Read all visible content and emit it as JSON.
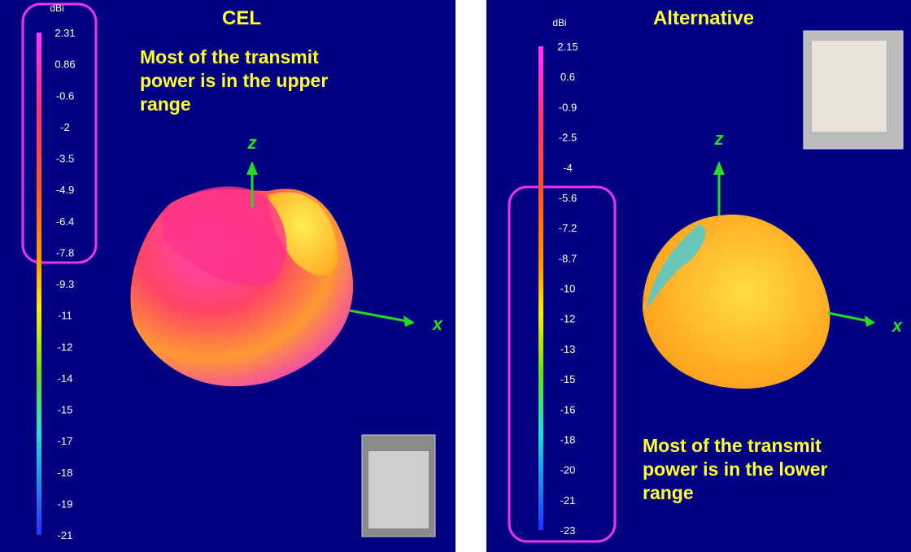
{
  "panels": [
    {
      "title": "CEL",
      "unit": "dBi",
      "scale_labels": [
        "2.31",
        "0.86",
        "-0.6",
        "-2",
        "-3.5",
        "-4.9",
        "-6.4",
        "-7.8",
        "-9.3",
        "-11",
        "-12",
        "-14",
        "-15",
        "-17",
        "-18",
        "-19",
        "-21"
      ],
      "annotation": [
        "Most of the transmit",
        "power is in the upper",
        "range"
      ],
      "axis_labels": {
        "z": "z",
        "x": "x"
      }
    },
    {
      "title": "Alternative",
      "unit": "dBi",
      "scale_labels": [
        "2.15",
        "0.6",
        "-0.9",
        "-2.5",
        "-4",
        "-5.6",
        "-7.2",
        "-8.7",
        "-10",
        "-12",
        "-13",
        "-15",
        "-16",
        "-18",
        "-20",
        "-21",
        "-23"
      ],
      "annotation": [
        "Most of the transmit",
        "power is in the lower",
        "range"
      ],
      "axis_labels": {
        "z": "z",
        "x": "x"
      }
    }
  ]
}
